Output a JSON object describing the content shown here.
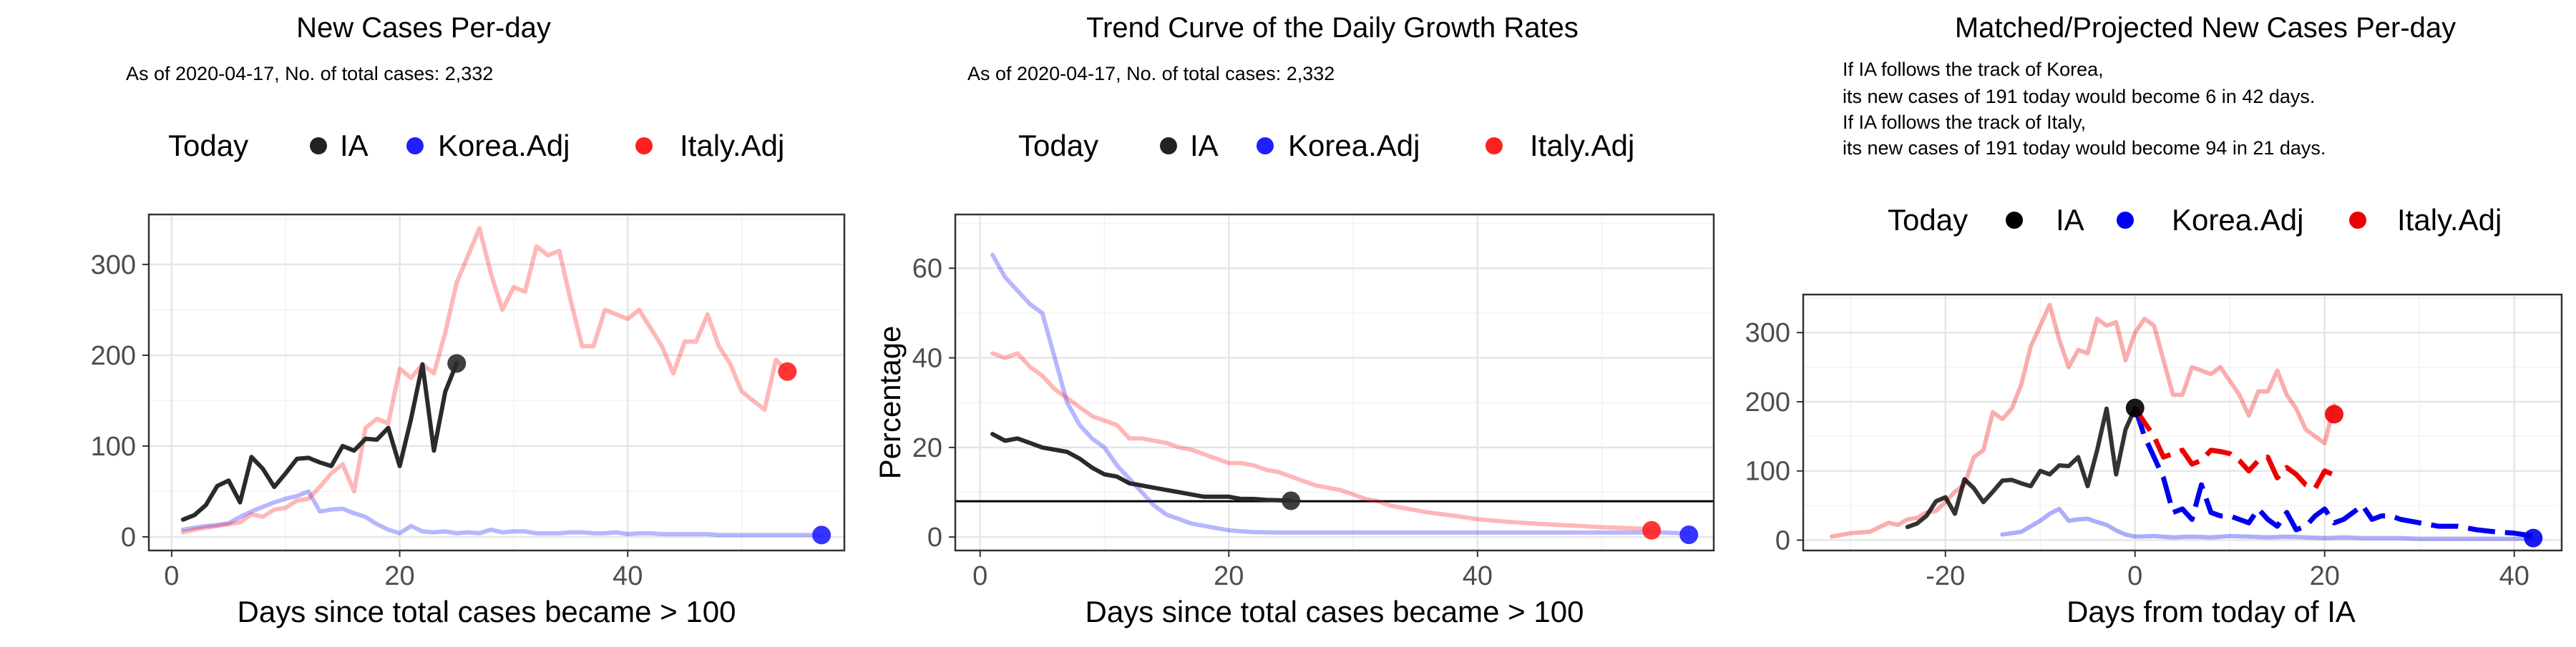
{
  "charts": [
    {
      "title": "New Cases Per-day",
      "notes": [
        "As of 2020-04-17, No. of total cases: 2,332"
      ],
      "legend": {
        "title": "Today",
        "items": [
          {
            "label": "IA",
            "color": "#222222"
          },
          {
            "label": "Korea.Adj",
            "color": "#1f1fff"
          },
          {
            "label": "Italy.Adj",
            "color": "#ff2020"
          }
        ]
      },
      "xlabel": "Days since total cases became > 100",
      "ylabel": "",
      "xticks": [
        0,
        20,
        40
      ],
      "yticks": [
        0,
        100,
        200,
        300
      ]
    },
    {
      "title": "Trend Curve of the Daily Growth Rates",
      "notes": [
        "As of 2020-04-17, No. of total cases: 2,332"
      ],
      "legend": {
        "title": "Today",
        "items": [
          {
            "label": "IA",
            "color": "#222222"
          },
          {
            "label": "Korea.Adj",
            "color": "#1f1fff"
          },
          {
            "label": "Italy.Adj",
            "color": "#ff2020"
          }
        ]
      },
      "xlabel": "Days since total cases became > 100",
      "ylabel": "Percentage",
      "xticks": [
        0,
        20,
        40
      ],
      "yticks": [
        0,
        20,
        40,
        60
      ]
    },
    {
      "title": "Matched/Projected New Cases Per-day",
      "notes": [
        "If IA follows the track of Korea,",
        "its new cases of 191 today would become 6 in 42 days.",
        "If IA follows the track of Italy,",
        "its new cases of 191 today would become 94 in 21 days."
      ],
      "legend": {
        "title": "Today",
        "items": [
          {
            "label": "IA",
            "color": "#000000"
          },
          {
            "label": "Korea.Adj",
            "color": "#0000ee"
          },
          {
            "label": "Italy.Adj",
            "color": "#ee0000"
          }
        ]
      },
      "xlabel": "Days from today of IA",
      "ylabel": "",
      "xticks": [
        -20,
        0,
        20,
        40
      ],
      "yticks": [
        0,
        100,
        200,
        300
      ]
    }
  ],
  "chart_data": [
    {
      "type": "line",
      "title": "New Cases Per-day",
      "xlabel": "Days since total cases became > 100",
      "xlim": [
        -2,
        59
      ],
      "ylim": [
        -15,
        355
      ],
      "series": [
        {
          "name": "IA",
          "color": "#2a2a2a",
          "alpha": 1,
          "x": [
            1,
            2,
            3,
            4,
            5,
            6,
            7,
            8,
            9,
            10,
            11,
            12,
            13,
            14,
            15,
            16,
            17,
            18,
            19,
            20,
            21,
            22,
            23,
            24,
            25
          ],
          "y": [
            19,
            24,
            35,
            56,
            62,
            38,
            88,
            75,
            55,
            70,
            86,
            87,
            82,
            78,
            100,
            95,
            108,
            107,
            120,
            78,
            130,
            190,
            95,
            160,
            191
          ]
        },
        {
          "name": "Korea.Adj",
          "color": "#1f1fff",
          "alpha": 0.32,
          "x": [
            1,
            2,
            3,
            4,
            5,
            6,
            7,
            8,
            9,
            10,
            11,
            12,
            13,
            14,
            15,
            16,
            17,
            18,
            19,
            20,
            21,
            22,
            23,
            24,
            25,
            26,
            27,
            28,
            29,
            30,
            31,
            32,
            33,
            34,
            35,
            36,
            37,
            38,
            39,
            40,
            41,
            42,
            43,
            44,
            45,
            46,
            47,
            48,
            49,
            50,
            51,
            52,
            53,
            54,
            55,
            56,
            57
          ],
          "y": [
            8,
            10,
            12,
            13,
            15,
            22,
            28,
            33,
            38,
            42,
            45,
            50,
            28,
            30,
            31,
            26,
            22,
            14,
            8,
            4,
            12,
            6,
            5,
            6,
            4,
            5,
            4,
            8,
            5,
            6,
            6,
            4,
            4,
            4,
            5,
            5,
            4,
            4,
            5,
            3,
            4,
            4,
            3,
            3,
            3,
            3,
            3,
            2,
            2,
            2,
            2,
            2,
            2,
            2,
            2,
            2,
            2
          ]
        },
        {
          "name": "Italy.Adj",
          "color": "#ff2020",
          "alpha": 0.32,
          "x": [
            1,
            2,
            3,
            4,
            5,
            6,
            7,
            8,
            9,
            10,
            11,
            12,
            13,
            14,
            15,
            16,
            17,
            18,
            19,
            20,
            21,
            22,
            23,
            24,
            25,
            26,
            27,
            28,
            29,
            30,
            31,
            32,
            33,
            34,
            35,
            36,
            37,
            38,
            39,
            40,
            41,
            42,
            43,
            44,
            45,
            46,
            47,
            48,
            49,
            50,
            51,
            52,
            53,
            54
          ],
          "y": [
            5,
            8,
            10,
            12,
            14,
            16,
            25,
            22,
            30,
            32,
            40,
            42,
            55,
            70,
            80,
            50,
            120,
            130,
            125,
            185,
            175,
            190,
            180,
            225,
            280,
            310,
            340,
            290,
            250,
            275,
            270,
            320,
            310,
            315,
            260,
            210,
            210,
            250,
            245,
            240,
            250,
            230,
            210,
            180,
            215,
            215,
            245,
            210,
            190,
            160,
            150,
            140,
            195,
            182
          ]
        }
      ],
      "points": [
        {
          "name": "IA",
          "x": 25,
          "y": 191,
          "color": "#2a2a2a"
        },
        {
          "name": "Korea.Adj",
          "x": 57,
          "y": 2,
          "color": "#1f1fff"
        },
        {
          "name": "Italy.Adj",
          "x": 54,
          "y": 182,
          "color": "#ff2020"
        }
      ]
    },
    {
      "type": "line",
      "title": "Trend Curve of the Daily Growth Rates",
      "xlabel": "Days since total cases became > 100",
      "ylabel": "Percentage",
      "xlim": [
        -2,
        59
      ],
      "ylim": [
        -3,
        72
      ],
      "hline": 8,
      "series": [
        {
          "name": "IA",
          "color": "#2a2a2a",
          "alpha": 1,
          "x": [
            1,
            2,
            3,
            4,
            5,
            6,
            7,
            8,
            9,
            10,
            11,
            12,
            13,
            14,
            15,
            16,
            17,
            18,
            19,
            20,
            21,
            22,
            23,
            24,
            25
          ],
          "y": [
            23,
            21.5,
            22,
            21,
            20,
            19.5,
            19,
            17.5,
            15.5,
            14,
            13.5,
            12,
            11.5,
            11,
            10.5,
            10,
            9.5,
            9,
            9,
            9,
            8.5,
            8.5,
            8.3,
            8.2,
            8.1
          ]
        },
        {
          "name": "Korea.Adj",
          "color": "#1f1fff",
          "alpha": 0.32,
          "x": [
            1,
            2,
            3,
            4,
            5,
            6,
            7,
            8,
            9,
            10,
            11,
            12,
            13,
            14,
            15,
            16,
            17,
            18,
            19,
            20,
            21,
            22,
            24,
            26,
            28,
            30,
            35,
            40,
            45,
            50,
            55,
            57
          ],
          "y": [
            63,
            58,
            55,
            52,
            50,
            40,
            30,
            25,
            22,
            20,
            16,
            13,
            10,
            7,
            5,
            4,
            3,
            2.5,
            2,
            1.5,
            1.3,
            1.1,
            1,
            1,
            1,
            1,
            1,
            1,
            1,
            1,
            1,
            0.8
          ]
        },
        {
          "name": "Italy.Adj",
          "color": "#ff2020",
          "alpha": 0.32,
          "x": [
            1,
            2,
            3,
            4,
            5,
            6,
            7,
            8,
            9,
            10,
            11,
            12,
            13,
            14,
            15,
            16,
            17,
            18,
            19,
            20,
            21,
            22,
            23,
            24,
            25,
            26,
            27,
            28,
            29,
            30,
            31,
            32,
            33,
            34,
            35,
            36,
            38,
            40,
            42,
            44,
            46,
            48,
            50,
            52,
            54
          ],
          "y": [
            41,
            40,
            41,
            38,
            36,
            33,
            31,
            29,
            27,
            26,
            25,
            22,
            22,
            21.5,
            21,
            20,
            19.5,
            18.5,
            17.5,
            16.5,
            16.5,
            16,
            15,
            14.5,
            13.5,
            12.5,
            11.5,
            11,
            10.5,
            9.5,
            8.5,
            8,
            7,
            6.5,
            6,
            5.5,
            4.8,
            4,
            3.5,
            3.1,
            2.8,
            2.5,
            2.2,
            2,
            1.8
          ]
        }
      ],
      "points": [
        {
          "name": "IA",
          "x": 25,
          "y": 8.1,
          "color": "#2a2a2a"
        },
        {
          "name": "Korea.Adj",
          "x": 57,
          "y": 0.5,
          "color": "#1f1fff"
        },
        {
          "name": "Italy.Adj",
          "x": 54,
          "y": 1.5,
          "color": "#ff2020"
        }
      ]
    },
    {
      "type": "line",
      "title": "Matched/Projected New Cases Per-day",
      "xlabel": "Days from today of IA",
      "xlim": [
        -35,
        45
      ],
      "ylim": [
        -15,
        355
      ],
      "series": [
        {
          "name": "IA",
          "color": "#000000",
          "alpha": 0.8,
          "x": [
            -24,
            -23,
            -22,
            -21,
            -20,
            -19,
            -18,
            -17,
            -16,
            -15,
            -14,
            -13,
            -12,
            -11,
            -10,
            -9,
            -8,
            -7,
            -6,
            -5,
            -4,
            -3,
            -2,
            -1,
            0
          ],
          "y": [
            19,
            24,
            35,
            56,
            62,
            38,
            88,
            75,
            55,
            70,
            86,
            87,
            82,
            78,
            100,
            95,
            108,
            107,
            120,
            78,
            130,
            190,
            95,
            160,
            191
          ]
        },
        {
          "name": "Korea.Adj",
          "color": "#0000ee",
          "alpha": 0.32,
          "x": [
            -14,
            -13,
            -12,
            -11,
            -10,
            -9,
            -8,
            -7,
            -6,
            -5,
            -4,
            -3,
            -2,
            -1,
            0,
            2,
            4,
            6,
            8,
            10,
            12,
            14,
            16,
            18,
            20,
            22,
            24,
            26,
            28,
            30,
            32,
            34,
            36,
            38,
            40,
            42
          ],
          "y": [
            8,
            10,
            12,
            20,
            28,
            38,
            45,
            28,
            30,
            31,
            26,
            22,
            14,
            8,
            5,
            6,
            4,
            5,
            4,
            6,
            5,
            4,
            5,
            4,
            3,
            4,
            3,
            3,
            3,
            2,
            2,
            2,
            2,
            2,
            2,
            2
          ]
        },
        {
          "name": "Italy.Adj",
          "color": "#ee0000",
          "alpha": 0.32,
          "x": [
            -32,
            -30,
            -28,
            -26,
            -25,
            -24,
            -23,
            -22,
            -21,
            -20,
            -19,
            -18,
            -17,
            -16,
            -15,
            -14,
            -13,
            -12,
            -11,
            -10,
            -9,
            -8,
            -7,
            -6,
            -5,
            -4,
            -3,
            -2,
            -1,
            0,
            1,
            2,
            3,
            4,
            5,
            6,
            7,
            8,
            9,
            10,
            11,
            12,
            13,
            14,
            15,
            16,
            17,
            18,
            19,
            20,
            21
          ],
          "y": [
            5,
            10,
            12,
            25,
            22,
            30,
            32,
            40,
            42,
            55,
            70,
            80,
            120,
            130,
            185,
            175,
            190,
            225,
            280,
            310,
            340,
            290,
            250,
            275,
            270,
            320,
            310,
            315,
            260,
            300,
            320,
            310,
            260,
            210,
            210,
            250,
            245,
            240,
            250,
            230,
            210,
            180,
            215,
            215,
            245,
            210,
            190,
            160,
            150,
            140,
            195
          ]
        }
      ],
      "projections": [
        {
          "name": "Korea.Adj",
          "color": "#0000ee",
          "x": [
            0,
            1,
            2,
            3,
            4,
            5,
            6,
            7,
            8,
            9,
            10,
            11,
            12,
            13,
            14,
            15,
            16,
            17,
            18,
            19,
            20,
            21,
            22,
            23,
            24,
            25,
            26,
            27,
            28,
            30,
            32,
            34,
            36,
            38,
            40,
            42
          ],
          "y": [
            191,
            150,
            120,
            90,
            40,
            45,
            30,
            80,
            40,
            35,
            35,
            30,
            25,
            45,
            30,
            20,
            40,
            15,
            20,
            35,
            45,
            25,
            30,
            40,
            50,
            30,
            35,
            35,
            30,
            25,
            20,
            20,
            15,
            12,
            10,
            6
          ]
        },
        {
          "name": "Italy.Adj",
          "color": "#ee0000",
          "x": [
            0,
            1,
            2,
            3,
            4,
            5,
            6,
            7,
            8,
            9,
            10,
            11,
            12,
            13,
            14,
            15,
            16,
            17,
            18,
            19,
            20,
            21
          ],
          "y": [
            191,
            170,
            150,
            120,
            125,
            130,
            110,
            115,
            130,
            128,
            125,
            115,
            100,
            115,
            120,
            90,
            105,
            95,
            80,
            75,
            100,
            94
          ]
        }
      ],
      "points": [
        {
          "name": "IA",
          "x": 0,
          "y": 191,
          "color": "#000000"
        },
        {
          "name": "Korea.Adj",
          "x": 42,
          "y": 3,
          "color": "#0000ee"
        },
        {
          "name": "Italy.Adj",
          "x": 21,
          "y": 182,
          "color": "#ee0000"
        }
      ]
    }
  ]
}
